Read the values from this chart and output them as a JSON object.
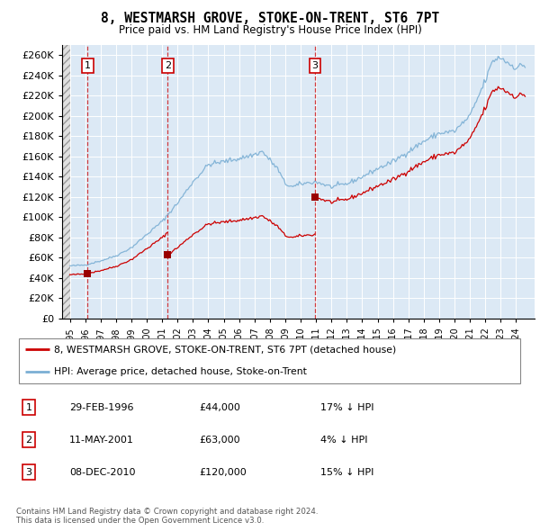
{
  "title": "8, WESTMARSH GROVE, STOKE-ON-TRENT, ST6 7PT",
  "subtitle": "Price paid vs. HM Land Registry's House Price Index (HPI)",
  "ylim": [
    0,
    270000
  ],
  "yticks": [
    0,
    20000,
    40000,
    60000,
    80000,
    100000,
    120000,
    140000,
    160000,
    180000,
    200000,
    220000,
    240000,
    260000
  ],
  "xlim_start": 1994.5,
  "xlim_end": 2025.2,
  "background_color": "#ffffff",
  "plot_bg_color": "#dce9f5",
  "grid_color": "#ffffff",
  "sales": [
    {
      "date": 1996.16,
      "price": 44000,
      "label": "1"
    },
    {
      "date": 2001.36,
      "price": 63000,
      "label": "2"
    },
    {
      "date": 2010.93,
      "price": 120000,
      "label": "3"
    }
  ],
  "sale_line_color": "#cc0000",
  "sale_dot_color": "#990000",
  "hpi_line_color": "#7bafd4",
  "legend_entries": [
    "8, WESTMARSH GROVE, STOKE-ON-TRENT, ST6 7PT (detached house)",
    "HPI: Average price, detached house, Stoke-on-Trent"
  ],
  "table_rows": [
    [
      "1",
      "29-FEB-1996",
      "£44,000",
      "17% ↓ HPI"
    ],
    [
      "2",
      "11-MAY-2001",
      "£63,000",
      "4% ↓ HPI"
    ],
    [
      "3",
      "08-DEC-2010",
      "£120,000",
      "15% ↓ HPI"
    ]
  ],
  "footnote": "Contains HM Land Registry data © Crown copyright and database right 2024.\nThis data is licensed under the Open Government Licence v3.0."
}
